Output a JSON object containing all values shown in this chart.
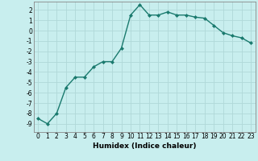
{
  "x": [
    0,
    1,
    2,
    3,
    4,
    5,
    6,
    7,
    8,
    9,
    10,
    11,
    12,
    13,
    14,
    15,
    16,
    17,
    18,
    19,
    20,
    21,
    22,
    23
  ],
  "y": [
    -8.5,
    -9.0,
    -8.0,
    -5.5,
    -4.5,
    -4.5,
    -3.5,
    -3.0,
    -3.0,
    -1.7,
    1.5,
    2.5,
    1.5,
    1.5,
    1.8,
    1.5,
    1.5,
    1.3,
    1.2,
    0.5,
    -0.2,
    -0.5,
    -0.7,
    -1.2
  ],
  "line_color": "#1a7a6e",
  "marker": "D",
  "markersize": 2.0,
  "linewidth": 1.0,
  "bg_color": "#c8eeee",
  "grid_color": "#b0d8d8",
  "xlabel": "Humidex (Indice chaleur)",
  "xlabel_fontsize": 6.5,
  "tick_fontsize": 5.5,
  "ylim": [
    -9.8,
    2.8
  ],
  "xlim": [
    -0.5,
    23.5
  ],
  "yticks": [
    2,
    1,
    0,
    -1,
    -2,
    -3,
    -4,
    -5,
    -6,
    -7,
    -8,
    -9
  ],
  "xticks": [
    0,
    1,
    2,
    3,
    4,
    5,
    6,
    7,
    8,
    9,
    10,
    11,
    12,
    13,
    14,
    15,
    16,
    17,
    18,
    19,
    20,
    21,
    22,
    23
  ]
}
